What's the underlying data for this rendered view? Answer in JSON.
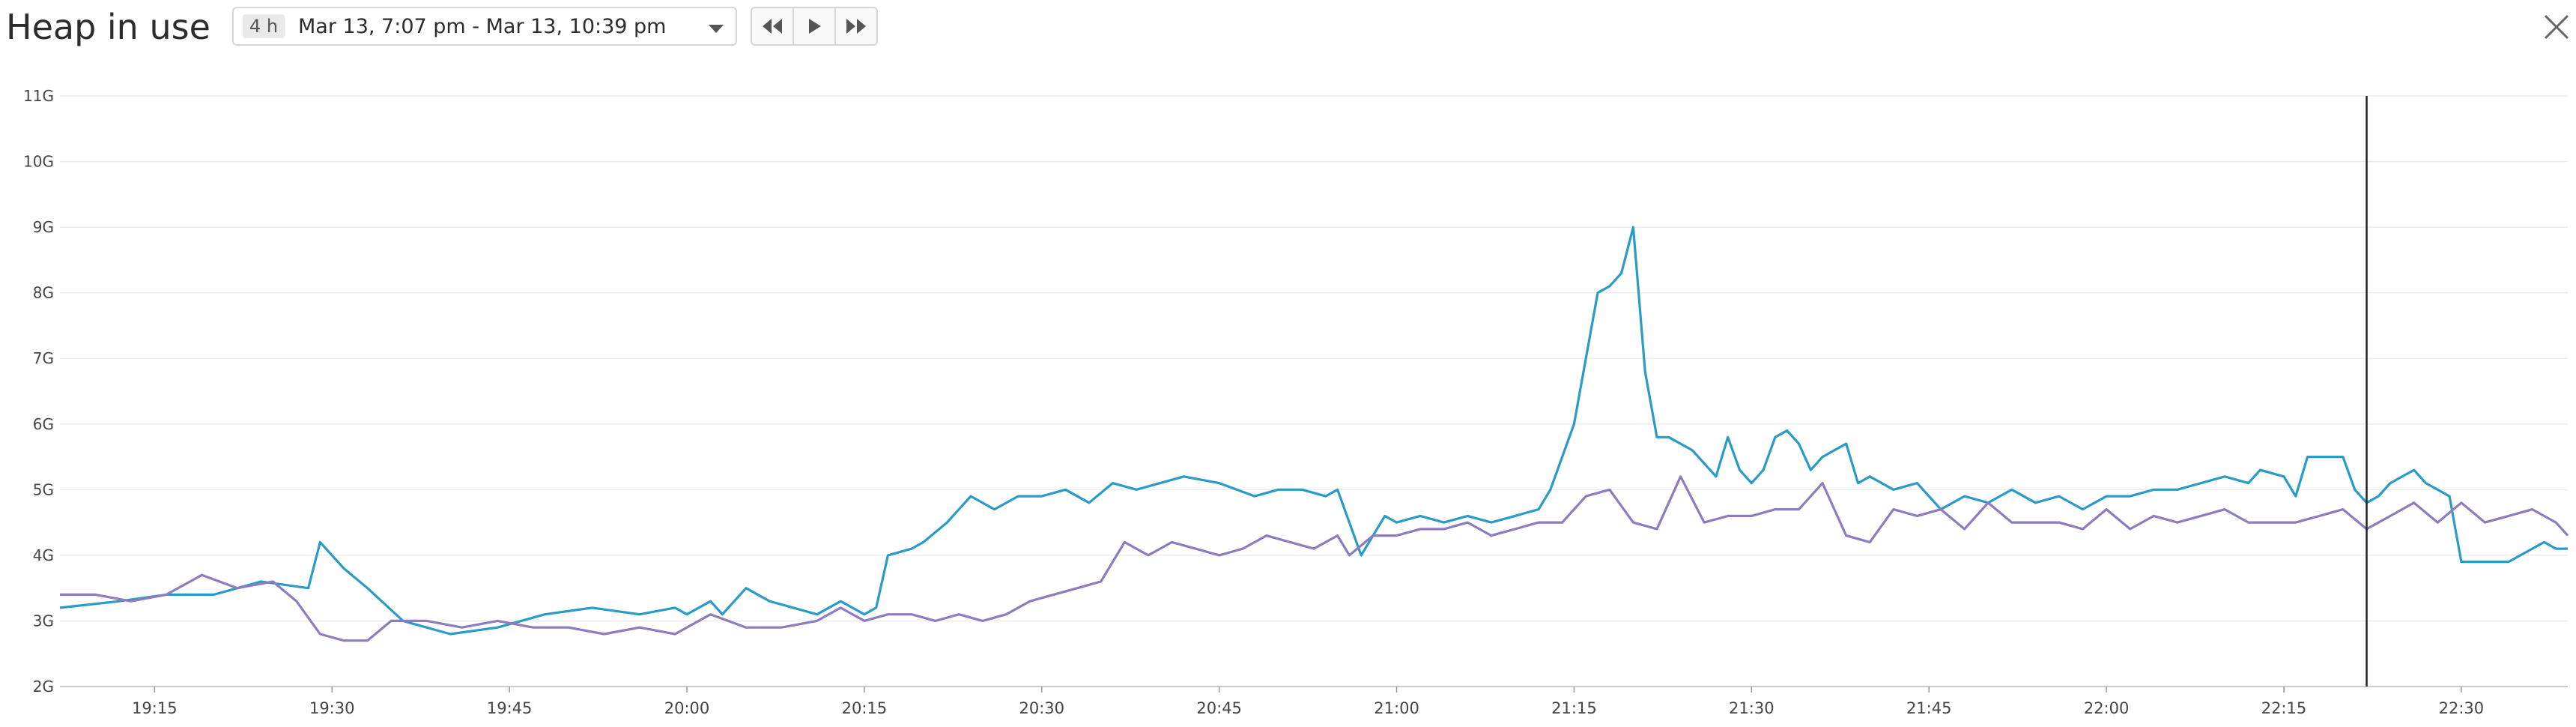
{
  "header": {
    "title": "Heap in use",
    "range_chip": "4 h",
    "range_text": "Mar 13, 7:07 pm - Mar 13, 10:39 pm"
  },
  "colors": {
    "series_a": "#2a9bc9",
    "series_b": "#8f7bbf",
    "grid": "#ececec",
    "cursor": "#222222"
  },
  "icons": {
    "rewind": "rewind-icon",
    "play": "play-icon",
    "fast_forward": "fast-forward-icon",
    "close": "close-icon"
  },
  "chart_data": {
    "type": "line",
    "title": "Heap in use",
    "xlabel": "",
    "ylabel": "",
    "x_range": [
      "19:07",
      "22:39"
    ],
    "ylim": [
      2,
      11
    ],
    "y_unit": "G",
    "y_ticks": [
      "2G",
      "3G",
      "4G",
      "5G",
      "6G",
      "7G",
      "8G",
      "9G",
      "10G",
      "11G"
    ],
    "x_ticks": [
      "19:15",
      "19:30",
      "19:45",
      "20:00",
      "20:15",
      "20:30",
      "20:45",
      "21:00",
      "21:15",
      "21:30",
      "21:45",
      "22:00",
      "22:15",
      "22:30"
    ],
    "grid": true,
    "legend": "none",
    "cursor_x": "22:22",
    "series": [
      {
        "color": "#2a9bc9",
        "x": [
          "19:07",
          "19:12",
          "19:16",
          "19:20",
          "19:24",
          "19:28",
          "19:29",
          "19:31",
          "19:33",
          "19:36",
          "19:40",
          "19:44",
          "19:48",
          "19:52",
          "19:56",
          "19:59",
          "20:00",
          "20:02",
          "20:03",
          "20:05",
          "20:07",
          "20:09",
          "20:11",
          "20:13",
          "20:15",
          "20:16",
          "20:17",
          "20:19",
          "20:20",
          "20:22",
          "20:24",
          "20:26",
          "20:28",
          "20:30",
          "20:32",
          "20:34",
          "20:36",
          "20:38",
          "20:40",
          "20:42",
          "20:45",
          "20:48",
          "20:50",
          "20:52",
          "20:54",
          "20:55",
          "20:57",
          "20:59",
          "21:00",
          "21:02",
          "21:04",
          "21:06",
          "21:08",
          "21:10",
          "21:12",
          "21:13",
          "21:14",
          "21:15",
          "21:16",
          "21:17",
          "21:18",
          "21:19",
          "21:20",
          "21:21",
          "21:22",
          "21:23",
          "21:25",
          "21:27",
          "21:28",
          "21:29",
          "21:30",
          "21:31",
          "21:32",
          "21:33",
          "21:34",
          "21:35",
          "21:36",
          "21:37",
          "21:38",
          "21:39",
          "21:40",
          "21:42",
          "21:44",
          "21:46",
          "21:48",
          "21:50",
          "21:52",
          "21:54",
          "21:56",
          "21:58",
          "22:00",
          "22:02",
          "22:04",
          "22:06",
          "22:08",
          "22:10",
          "22:12",
          "22:13",
          "22:15",
          "22:16",
          "22:17",
          "22:18",
          "22:19",
          "22:20",
          "22:21",
          "22:22",
          "22:23",
          "22:24",
          "22:25",
          "22:26",
          "22:27",
          "22:28",
          "22:29",
          "22:30",
          "22:31",
          "22:32",
          "22:33",
          "22:34",
          "22:35",
          "22:36",
          "22:37",
          "22:38",
          "22:39"
        ],
        "y": [
          3.2,
          3.3,
          3.4,
          3.4,
          3.6,
          3.5,
          4.2,
          3.8,
          3.5,
          3.0,
          2.8,
          2.9,
          3.1,
          3.2,
          3.1,
          3.2,
          3.1,
          3.3,
          3.1,
          3.5,
          3.3,
          3.2,
          3.1,
          3.3,
          3.1,
          3.2,
          4.0,
          4.1,
          4.2,
          4.5,
          4.9,
          4.7,
          4.9,
          4.9,
          5.0,
          4.8,
          5.1,
          5.0,
          5.1,
          5.2,
          5.1,
          4.9,
          5.0,
          5.0,
          4.9,
          5.0,
          4.0,
          4.6,
          4.5,
          4.6,
          4.5,
          4.6,
          4.5,
          4.6,
          4.7,
          5.0,
          5.5,
          6.0,
          7.0,
          8.0,
          8.1,
          8.3,
          9.0,
          6.8,
          5.8,
          5.8,
          5.6,
          5.2,
          5.8,
          5.3,
          5.1,
          5.3,
          5.8,
          5.9,
          5.7,
          5.3,
          5.5,
          5.6,
          5.7,
          5.1,
          5.2,
          5.0,
          5.1,
          4.7,
          4.9,
          4.8,
          5.0,
          4.8,
          4.9,
          4.7,
          4.9,
          4.9,
          5.0,
          5.0,
          5.1,
          5.2,
          5.1,
          5.3,
          5.2,
          4.9,
          5.5,
          5.5,
          5.5,
          5.5,
          5.0,
          4.8,
          4.9,
          5.1,
          5.2,
          5.3,
          5.1,
          5.0,
          4.9,
          3.9,
          3.9,
          3.9,
          3.9,
          3.9,
          4.0,
          4.1,
          4.2,
          4.1,
          4.1
        ]
      },
      {
        "color": "#8f7bbf",
        "x": [
          "19:07",
          "19:10",
          "19:13",
          "19:16",
          "19:19",
          "19:22",
          "19:25",
          "19:27",
          "19:29",
          "19:31",
          "19:33",
          "19:35",
          "19:38",
          "19:41",
          "19:44",
          "19:47",
          "19:50",
          "19:53",
          "19:56",
          "19:59",
          "20:02",
          "20:05",
          "20:08",
          "20:11",
          "20:13",
          "20:15",
          "20:17",
          "20:19",
          "20:21",
          "20:23",
          "20:25",
          "20:27",
          "20:29",
          "20:31",
          "20:33",
          "20:35",
          "20:37",
          "20:39",
          "20:41",
          "20:43",
          "20:45",
          "20:47",
          "20:49",
          "20:51",
          "20:53",
          "20:55",
          "20:56",
          "20:58",
          "21:00",
          "21:02",
          "21:04",
          "21:06",
          "21:08",
          "21:10",
          "21:12",
          "21:14",
          "21:16",
          "21:18",
          "21:20",
          "21:22",
          "21:24",
          "21:26",
          "21:28",
          "21:30",
          "21:32",
          "21:34",
          "21:36",
          "21:38",
          "21:40",
          "21:42",
          "21:44",
          "21:46",
          "21:48",
          "21:50",
          "21:52",
          "21:54",
          "21:56",
          "21:58",
          "22:00",
          "22:02",
          "22:04",
          "22:06",
          "22:08",
          "22:10",
          "22:12",
          "22:14",
          "22:16",
          "22:18",
          "22:20",
          "22:22",
          "22:24",
          "22:26",
          "22:28",
          "22:30",
          "22:32",
          "22:34",
          "22:36",
          "22:38",
          "22:39"
        ],
        "y": [
          3.4,
          3.4,
          3.3,
          3.4,
          3.7,
          3.5,
          3.6,
          3.3,
          2.8,
          2.7,
          2.7,
          3.0,
          3.0,
          2.9,
          3.0,
          2.9,
          2.9,
          2.8,
          2.9,
          2.8,
          3.1,
          2.9,
          2.9,
          3.0,
          3.2,
          3.0,
          3.1,
          3.1,
          3.0,
          3.1,
          3.0,
          3.1,
          3.3,
          3.4,
          3.5,
          3.6,
          4.2,
          4.0,
          4.2,
          4.1,
          4.0,
          4.1,
          4.3,
          4.2,
          4.1,
          4.3,
          4.0,
          4.3,
          4.3,
          4.4,
          4.4,
          4.5,
          4.3,
          4.4,
          4.5,
          4.5,
          4.9,
          5.0,
          4.5,
          4.4,
          5.2,
          4.5,
          4.6,
          4.6,
          4.7,
          4.7,
          5.1,
          4.3,
          4.2,
          4.7,
          4.6,
          4.7,
          4.4,
          4.8,
          4.5,
          4.5,
          4.5,
          4.4,
          4.7,
          4.4,
          4.6,
          4.5,
          4.6,
          4.7,
          4.5,
          4.5,
          4.5,
          4.6,
          4.7,
          4.4,
          4.6,
          4.8,
          4.5,
          4.8,
          4.5,
          4.6,
          4.7,
          4.5,
          4.3
        ]
      }
    ]
  }
}
